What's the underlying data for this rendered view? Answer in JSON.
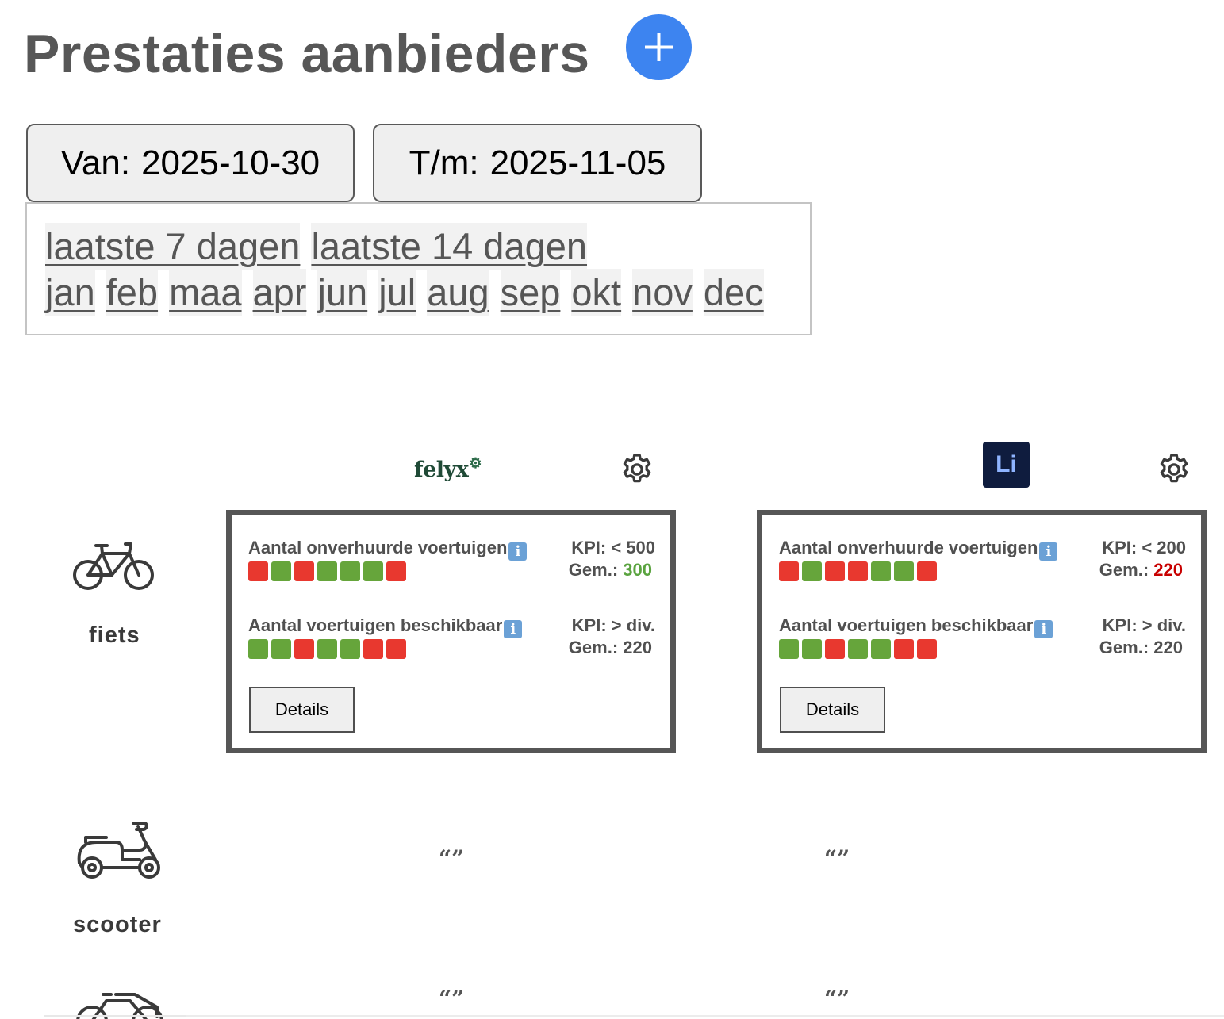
{
  "header": {
    "title": "Prestaties aanbieders",
    "add_icon": "plus-icon",
    "accent_color": "#3d84f0"
  },
  "date_range": {
    "from_label": "Van:",
    "from_value": "2025-10-30",
    "to_label": "T/m:",
    "to_value": "2025-11-05"
  },
  "quick_ranges": {
    "relative": [
      "laatste 7 dagen",
      "laatste 14 dagen"
    ],
    "months": [
      "jan",
      "feb",
      "maa",
      "apr",
      "jun",
      "jul",
      "aug",
      "sep",
      "okt",
      "nov",
      "dec"
    ]
  },
  "providers": [
    {
      "logo_text": "felyx",
      "settings_icon": "gear-icon"
    },
    {
      "logo_text": "Li",
      "settings_icon": "gear-icon"
    }
  ],
  "vehicle_types": [
    {
      "label": "fiets",
      "icon": "bicycle-icon"
    },
    {
      "label": "scooter",
      "icon": "scooter-icon"
    },
    {
      "label": "",
      "icon": "cargo-bike-icon"
    }
  ],
  "cards": [
    {
      "metrics": [
        {
          "name": "Aantal onverhuurde voertuigen",
          "info_icon": "info-icon",
          "kpi": "KPI: < 500",
          "avg_label": "Gem.:",
          "avg_value": "300",
          "avg_status": "good",
          "days": [
            "red",
            "green",
            "red",
            "green",
            "green",
            "green",
            "red"
          ]
        },
        {
          "name": "Aantal voertuigen beschikbaar",
          "info_icon": "info-icon",
          "kpi": "KPI: > div.",
          "avg_label": "Gem.:",
          "avg_value": "220",
          "avg_status": "neutral",
          "days": [
            "green",
            "green",
            "red",
            "green",
            "green",
            "red",
            "red"
          ]
        }
      ],
      "details_label": "Details"
    },
    {
      "metrics": [
        {
          "name": "Aantal onverhuurde voertuigen",
          "info_icon": "info-icon",
          "kpi": "KPI: < 200",
          "avg_label": "Gem.:",
          "avg_value": "220",
          "avg_status": "bad",
          "days": [
            "red",
            "green",
            "red",
            "red",
            "green",
            "green",
            "red"
          ]
        },
        {
          "name": "Aantal voertuigen beschikbaar",
          "info_icon": "info-icon",
          "kpi": "KPI: > div.",
          "avg_label": "Gem.:",
          "avg_value": "220",
          "avg_status": "neutral",
          "days": [
            "green",
            "green",
            "red",
            "green",
            "green",
            "red",
            "red"
          ]
        }
      ],
      "details_label": "Details"
    }
  ],
  "ditto_mark": "“”",
  "status_colors": {
    "green": "#66a53b",
    "red": "#e8382f",
    "good_text": "#5aa33f",
    "bad_text": "#c80000"
  }
}
